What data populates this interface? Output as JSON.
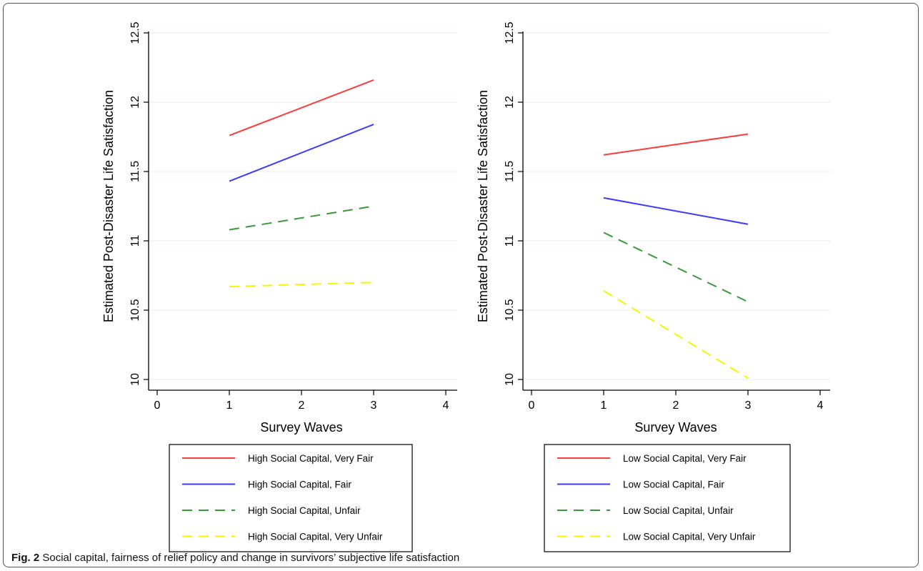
{
  "caption": {
    "label": "Fig. 2",
    "text": "Social capital, fairness of relief policy and change in survivors’ subjective life satisfaction"
  },
  "colors": {
    "very_fair": "#ff3b3b",
    "fair": "#3b3bff",
    "unfair": "#3a9a3a",
    "very_unfair": "#f5f500",
    "grid": "#e3ecec",
    "axis": "#000000"
  },
  "chart_data": [
    {
      "type": "line",
      "title": "",
      "xlabel": "Survey Waves",
      "ylabel": "Estimated Post-Disaster Life Satisfaction",
      "xlim": [
        0,
        4
      ],
      "ylim": [
        10,
        12.5
      ],
      "xticks": [
        "0",
        "1",
        "2",
        "3",
        "4"
      ],
      "yticks": [
        "10",
        "10.5",
        "11",
        "11.5",
        "12",
        "12.5"
      ],
      "grid": true,
      "legend_position": "bottom",
      "series": [
        {
          "name": "High Social Capital, Very Fair",
          "x": [
            1,
            3
          ],
          "y": [
            11.76,
            12.16
          ],
          "style": "solid",
          "color": "#ff3b3b"
        },
        {
          "name": "High Social Capital, Fair",
          "x": [
            1,
            3
          ],
          "y": [
            11.43,
            11.84
          ],
          "style": "solid",
          "color": "#3b3bff"
        },
        {
          "name": "High Social Capital, Unfair",
          "x": [
            1,
            3
          ],
          "y": [
            11.08,
            11.25
          ],
          "style": "dashed",
          "color": "#3a9a3a"
        },
        {
          "name": "High Social Capital, Very Unfair",
          "x": [
            1,
            3
          ],
          "y": [
            10.67,
            10.7
          ],
          "style": "dashed",
          "color": "#f5f500"
        }
      ]
    },
    {
      "type": "line",
      "title": "",
      "xlabel": "Survey Waves",
      "ylabel": "Estimated Post-Disaster Life Satisfaction",
      "xlim": [
        0,
        4
      ],
      "ylim": [
        10,
        12.5
      ],
      "xticks": [
        "0",
        "1",
        "2",
        "3",
        "4"
      ],
      "yticks": [
        "10",
        "10.5",
        "11",
        "11.5",
        "12",
        "12.5"
      ],
      "grid": true,
      "legend_position": "bottom",
      "series": [
        {
          "name": "Low Social Capital, Very Fair",
          "x": [
            1,
            3
          ],
          "y": [
            11.62,
            11.77
          ],
          "style": "solid",
          "color": "#ff3b3b"
        },
        {
          "name": "Low Social Capital, Fair",
          "x": [
            1,
            3
          ],
          "y": [
            11.31,
            11.12
          ],
          "style": "solid",
          "color": "#3b3bff"
        },
        {
          "name": "Low Social Capital, Unfair",
          "x": [
            1,
            3
          ],
          "y": [
            11.06,
            10.56
          ],
          "style": "dashed",
          "color": "#3a9a3a"
        },
        {
          "name": "Low Social Capital, Very Unfair",
          "x": [
            1,
            3
          ],
          "y": [
            10.64,
            10.01
          ],
          "style": "dashed",
          "color": "#f5f500"
        }
      ]
    }
  ]
}
